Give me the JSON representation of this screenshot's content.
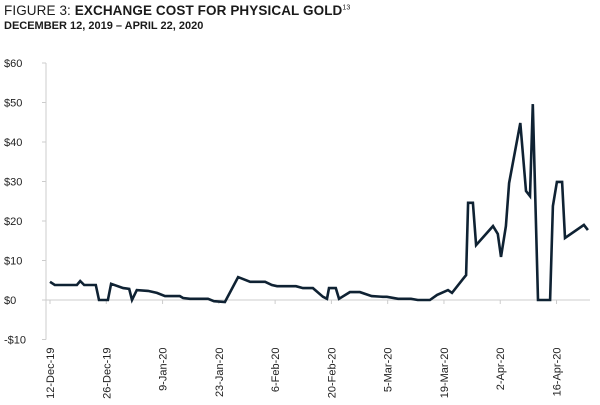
{
  "chart_data": {
    "type": "line",
    "title_prefix": "FIGURE 3: ",
    "title": "EXCHANGE COST FOR PHYSICAL GOLD",
    "title_footnote": "13",
    "subtitle": "DECEMBER 12, 2019 – APRIL 22, 2020",
    "xlabel": "",
    "ylabel": "",
    "ylim": [
      -10,
      60
    ],
    "xlim_days": [
      0,
      134
    ],
    "y_ticks": [
      60,
      50,
      40,
      30,
      20,
      10,
      0,
      -10
    ],
    "y_tick_labels": [
      "$60",
      "$50",
      "$40",
      "$30",
      "$20",
      "$10",
      "$0",
      "-$10"
    ],
    "x_ticks_days": [
      0,
      14,
      28,
      42,
      56,
      70,
      84,
      98,
      112,
      126
    ],
    "x_tick_labels": [
      "12-Dec-19",
      "26-Dec-19",
      "9-Jan-20",
      "23-Jan-20",
      "6-Feb-20",
      "20-Feb-20",
      "5-Mar-20",
      "19-Mar-20",
      "2-Apr-20",
      "16-Apr-20"
    ],
    "grid": false,
    "line_color": "#0f2233",
    "series": [
      {
        "name": "Exchange cost",
        "x_days": [
          0,
          1.2,
          6.7,
          7.5,
          8.5,
          11.4,
          12.2,
          14.4,
          15.2,
          18.2,
          19.7,
          20.4,
          21.6,
          24.4,
          26.6,
          28.6,
          32.3,
          33.1,
          34.8,
          39.3,
          40.8,
          43.5,
          46.8,
          49.8,
          53.5,
          55.2,
          56.5,
          61.2,
          62.9,
          65.4,
          67.9,
          68.9,
          69.4,
          71.1,
          71.9,
          74.6,
          77.1,
          80.0,
          82.8,
          83.8,
          86.6,
          89.8,
          91.5,
          94.5,
          96.3,
          99.0,
          100.0,
          102.7,
          103.5,
          104.0,
          105.2,
          106.0,
          110.2,
          111.4,
          112.2,
          113.4,
          114.2,
          117.0,
          118.4,
          119.4,
          120.1,
          121.4,
          124.4,
          125.1,
          126.1,
          127.4,
          128.1,
          132.8,
          133.8
        ],
        "values": [
          4.6,
          3.8,
          3.8,
          4.8,
          3.8,
          3.8,
          0,
          0,
          4.1,
          3.0,
          2.8,
          0,
          2.5,
          2.3,
          1.8,
          1.0,
          1.0,
          0.5,
          0.3,
          0.3,
          -0.3,
          -0.5,
          5.8,
          4.6,
          4.6,
          3.8,
          3.5,
          3.5,
          3.0,
          3.0,
          0.8,
          0.3,
          3.0,
          3.0,
          0.3,
          2.0,
          2.0,
          1.0,
          0.8,
          0.8,
          0.3,
          0.3,
          0,
          0,
          1.3,
          2.5,
          1.8,
          5.3,
          6.3,
          24.6,
          24.6,
          13.9,
          18.7,
          16.7,
          10.9,
          18.7,
          29.6,
          44.8,
          27.6,
          26.3,
          49.6,
          0,
          0,
          23.8,
          29.9,
          29.9,
          15.7,
          19.0,
          17.7
        ]
      }
    ]
  }
}
